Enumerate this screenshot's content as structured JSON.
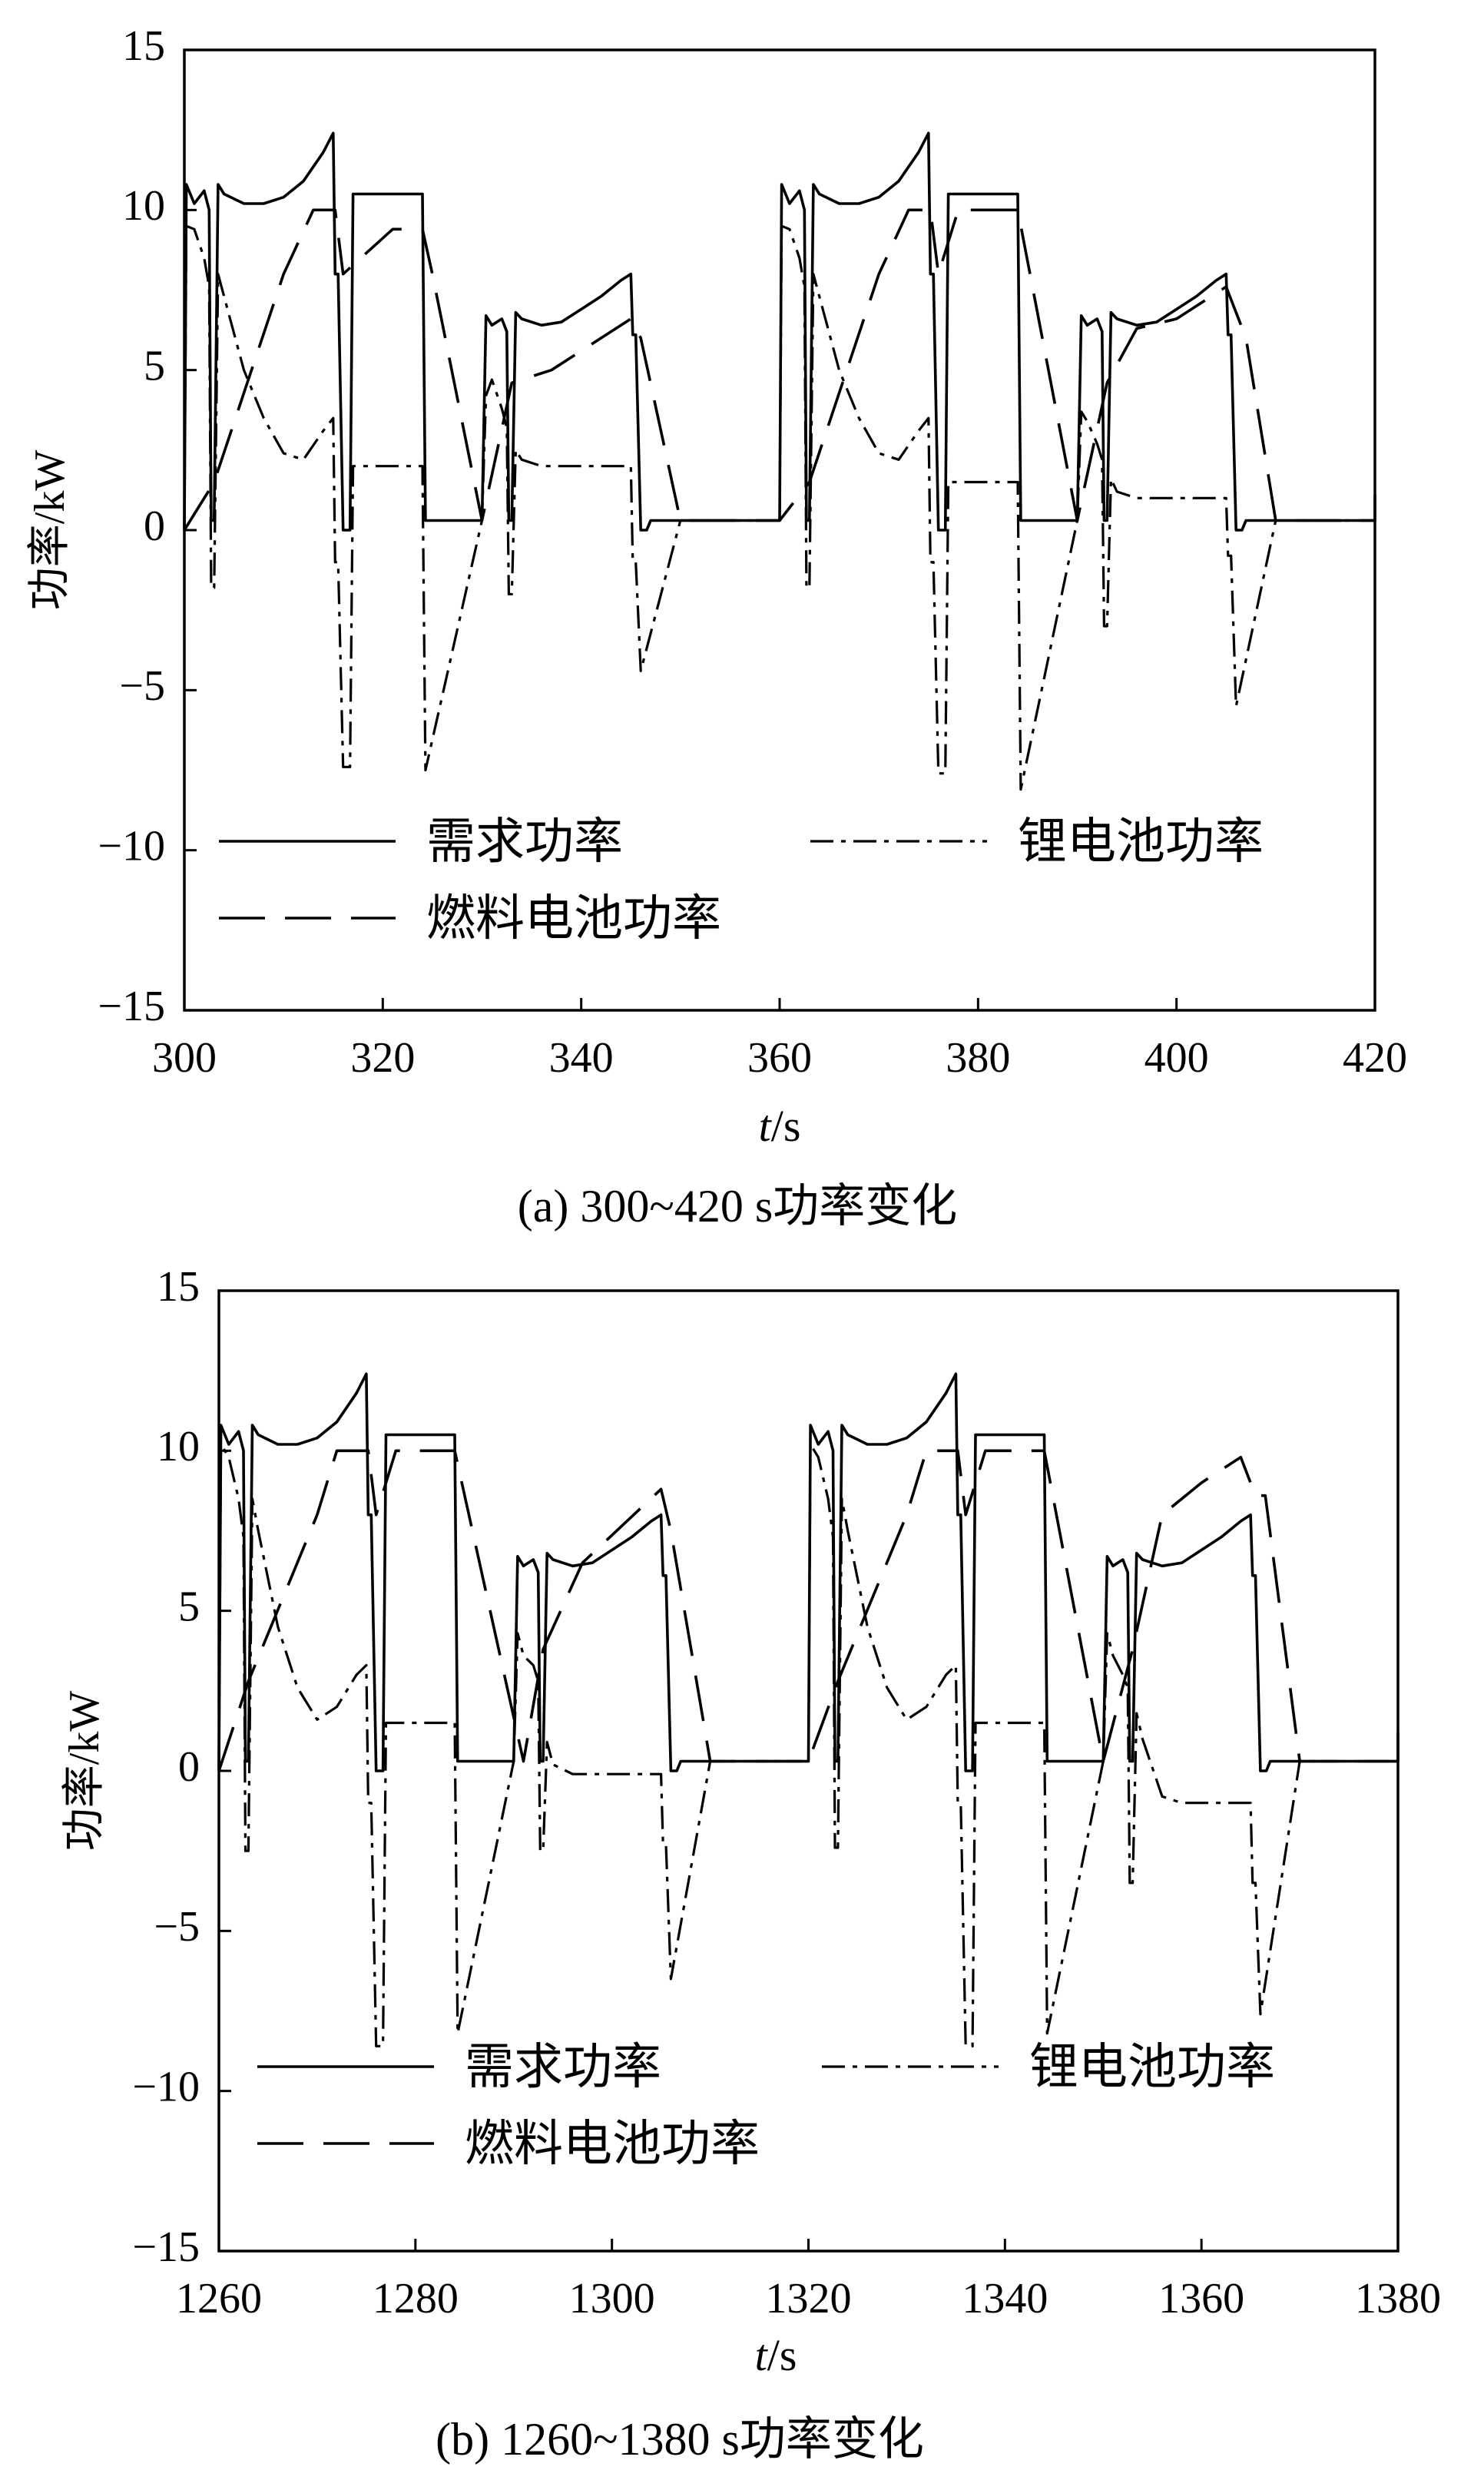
{
  "chart_data": [
    {
      "type": "line",
      "caption": "(a) 300~420 s功率变化",
      "xlabel_italic": "t",
      "xlabel_unit": "/s",
      "ylabel": "功率/kW",
      "xlim": [
        300,
        420
      ],
      "ylim": [
        -15,
        15
      ],
      "xticks": [
        300,
        320,
        340,
        360,
        380,
        400,
        420
      ],
      "yticks": [
        15,
        10,
        5,
        0,
        -5,
        -10,
        -15
      ],
      "legend_position": "bottom",
      "series": [
        {
          "name": "需求功率",
          "style": "solid",
          "x": [
            300,
            300.2,
            301,
            302,
            302.5,
            302.7,
            303,
            303.4,
            304,
            306,
            308,
            310,
            312,
            314,
            315,
            315.2,
            315.5,
            316,
            316.7,
            317,
            318,
            324,
            324.3,
            330,
            330.4,
            331,
            332,
            332.5,
            332.7,
            333,
            333.4,
            334,
            336,
            338,
            340,
            342,
            344,
            345,
            345.2,
            345.5,
            346,
            346.6,
            347,
            350,
            355,
            360,
            360.2,
            361,
            362,
            362.5,
            362.7,
            363,
            363.4,
            364,
            366,
            368,
            370,
            372,
            374,
            375,
            375.2,
            375.5,
            376,
            376.7,
            377,
            378,
            384,
            384.3,
            390,
            390.4,
            391,
            392,
            392.5,
            392.7,
            393,
            393.4,
            394,
            396,
            398,
            400,
            402,
            404,
            405,
            405.2,
            405.5,
            406,
            406.6,
            407,
            410,
            415,
            420,
            420,
            420
          ],
          "y": [
            0,
            10.8,
            10.2,
            10.6,
            10.0,
            0.3,
            0.3,
            10.8,
            10.5,
            10.2,
            10.2,
            10.4,
            10.9,
            11.8,
            12.4,
            8.0,
            8.0,
            0.0,
            0.0,
            10.5,
            10.5,
            10.5,
            0.3,
            0.3,
            6.7,
            6.4,
            6.6,
            6.2,
            0.3,
            0.3,
            6.8,
            6.6,
            6.4,
            6.5,
            6.9,
            7.3,
            7.8,
            8.0,
            6.1,
            6.1,
            0.0,
            0.0,
            0.3,
            0.3,
            0.3,
            0.3,
            10.8,
            10.2,
            10.6,
            10.0,
            0.3,
            0.3,
            10.8,
            10.5,
            10.2,
            10.2,
            10.4,
            10.9,
            11.8,
            12.4,
            8.0,
            8.0,
            0.0,
            0.0,
            10.5,
            10.5,
            10.5,
            0.3,
            0.3,
            6.7,
            6.4,
            6.6,
            6.2,
            0.3,
            0.3,
            6.8,
            6.6,
            6.4,
            6.5,
            6.9,
            7.3,
            7.8,
            8.0,
            6.1,
            6.1,
            0.0,
            0.0,
            0.3,
            0.3,
            0.3,
            0.3,
            0.3,
            1.1
          ]
        },
        {
          "name": "锂电池功率",
          "style": "dashdotdot",
          "x": [
            300,
            300.2,
            301,
            302,
            302.5,
            302.7,
            303,
            303.4,
            304,
            306,
            308,
            310,
            312,
            314,
            315,
            315.2,
            315.5,
            316,
            316.7,
            317,
            324,
            324.3,
            330,
            330.4,
            331,
            332,
            332.5,
            332.7,
            333,
            333.4,
            334,
            336,
            345,
            345.2,
            345.5,
            346,
            350,
            360,
            360.2,
            361,
            362,
            362.5,
            362.7,
            363,
            363.4,
            364,
            366,
            368,
            370,
            372,
            374,
            375,
            375.2,
            375.5,
            376,
            376.7,
            377,
            384,
            384.3,
            390,
            390.4,
            391,
            392,
            392.5,
            392.7,
            393,
            393.4,
            394,
            396,
            405,
            405.2,
            405.5,
            406,
            410,
            420
          ],
          "y": [
            0,
            9.5,
            9.4,
            8.5,
            7.6,
            -1.8,
            -1.8,
            8.0,
            7.3,
            5.0,
            3.5,
            2.4,
            2.2,
            3.1,
            3.5,
            -1.0,
            -1.0,
            -7.4,
            -7.4,
            2.0,
            2.0,
            -7.5,
            0.3,
            4.2,
            4.7,
            3.8,
            3.2,
            -2.0,
            -2.0,
            2.5,
            2.2,
            2.0,
            2.0,
            -1.0,
            -1.0,
            -4.4,
            0.3,
            0.3,
            9.5,
            9.4,
            8.5,
            7.6,
            -1.8,
            -1.8,
            8.0,
            7.3,
            5.0,
            3.5,
            2.4,
            2.2,
            3.1,
            3.5,
            -1.0,
            -1.0,
            -7.6,
            -7.6,
            1.5,
            1.5,
            -8.1,
            0.3,
            3.7,
            3.4,
            2.7,
            2.2,
            -3.0,
            -3.0,
            1.6,
            1.2,
            1.0,
            1.0,
            -0.8,
            -0.8,
            -5.5,
            0.3,
            0.3
          ]
        },
        {
          "name": "燃料电池功率",
          "style": "dashed",
          "x": [
            300,
            303,
            310,
            313,
            315.2,
            316,
            321,
            324,
            325,
            330,
            333,
            337,
            345,
            346,
            350,
            360,
            363,
            370,
            373,
            375.2,
            376,
            378,
            384,
            390,
            393,
            396,
            400,
            405,
            407,
            410,
            420
          ],
          "y": [
            0,
            1.5,
            8.0,
            10.0,
            10.0,
            8.0,
            9.4,
            9.4,
            8.0,
            0.3,
            4.6,
            5.0,
            6.6,
            6.0,
            0.3,
            0.3,
            1.5,
            8.0,
            10.0,
            10.0,
            8.0,
            10.0,
            10.0,
            0.3,
            4.6,
            6.3,
            6.6,
            7.6,
            6.0,
            0.3,
            0.3
          ]
        }
      ]
    },
    {
      "type": "line",
      "caption": "(b) 1260~1380 s功率变化",
      "xlabel_italic": "t",
      "xlabel_unit": "/s",
      "ylabel": "功率/kW",
      "xlim": [
        1260,
        1380
      ],
      "ylim": [
        -15,
        15
      ],
      "xticks": [
        1260,
        1280,
        1300,
        1320,
        1340,
        1360,
        1380
      ],
      "yticks": [
        15,
        10,
        5,
        0,
        -5,
        -10,
        -15
      ],
      "legend_position": "bottom",
      "series": [
        {
          "name": "需求功率",
          "style": "solid",
          "x": [
            1260,
            1260.2,
            1261,
            1262,
            1262.5,
            1262.7,
            1263,
            1263.4,
            1264,
            1266,
            1268,
            1270,
            1272,
            1274,
            1275,
            1275.2,
            1275.5,
            1276,
            1276.7,
            1277,
            1278,
            1284,
            1284.3,
            1290,
            1290.4,
            1291,
            1292,
            1292.5,
            1292.7,
            1293,
            1293.4,
            1294,
            1296,
            1298,
            1300,
            1302,
            1304,
            1305,
            1305.2,
            1305.5,
            1306,
            1306.6,
            1307,
            1310,
            1315,
            1320,
            1320.2,
            1321,
            1322,
            1322.5,
            1322.7,
            1323,
            1323.4,
            1324,
            1326,
            1328,
            1330,
            1332,
            1334,
            1335,
            1335.2,
            1335.5,
            1336,
            1336.7,
            1337,
            1338,
            1344,
            1344.3,
            1350,
            1350.4,
            1351,
            1352,
            1352.5,
            1352.7,
            1353,
            1353.4,
            1354,
            1356,
            1358,
            1360,
            1362,
            1364,
            1365,
            1365.2,
            1365.5,
            1366,
            1366.6,
            1367,
            1370,
            1375,
            1380,
            1380,
            1380
          ],
          "y": [
            0,
            10.8,
            10.2,
            10.6,
            10.0,
            0.3,
            0.3,
            10.8,
            10.5,
            10.2,
            10.2,
            10.4,
            10.9,
            11.8,
            12.4,
            8.0,
            8.0,
            0.0,
            0.0,
            10.5,
            10.5,
            10.5,
            0.3,
            0.3,
            6.7,
            6.4,
            6.6,
            6.2,
            0.3,
            0.3,
            6.8,
            6.6,
            6.4,
            6.5,
            6.9,
            7.3,
            7.8,
            8.0,
            6.1,
            6.1,
            0.0,
            0.0,
            0.3,
            0.3,
            0.3,
            0.3,
            10.8,
            10.2,
            10.6,
            10.0,
            0.3,
            0.3,
            10.8,
            10.5,
            10.2,
            10.2,
            10.4,
            10.9,
            11.8,
            12.4,
            8.0,
            8.0,
            0.0,
            0.0,
            10.5,
            10.5,
            10.5,
            0.3,
            0.3,
            6.7,
            6.4,
            6.6,
            6.2,
            0.3,
            0.3,
            6.8,
            6.6,
            6.4,
            6.5,
            6.9,
            7.3,
            7.8,
            8.0,
            6.1,
            6.1,
            0.0,
            0.0,
            0.3,
            0.3,
            0.3,
            0.3,
            0.3,
            1.2
          ]
        },
        {
          "name": "锂电池功率",
          "style": "dashdotdot",
          "x": [
            1260,
            1260.2,
            1261,
            1262,
            1262.5,
            1262.7,
            1263,
            1263.4,
            1264,
            1266,
            1268,
            1270,
            1272,
            1274,
            1275,
            1275.2,
            1275.5,
            1276,
            1276.7,
            1277,
            1284,
            1284.3,
            1290,
            1290.4,
            1291,
            1292,
            1292.5,
            1292.7,
            1293,
            1293.4,
            1294,
            1296,
            1305,
            1305.2,
            1305.5,
            1306,
            1310,
            1320,
            1320.2,
            1321,
            1322,
            1322.5,
            1322.7,
            1323,
            1323.4,
            1324,
            1326,
            1328,
            1330,
            1332,
            1334,
            1335,
            1335.2,
            1335.5,
            1336,
            1336.7,
            1337,
            1344,
            1344.3,
            1350,
            1350.4,
            1351,
            1352,
            1352.5,
            1352.7,
            1353,
            1353.4,
            1354,
            1356,
            1358,
            1365,
            1365.2,
            1365.5,
            1366,
            1370,
            1380
          ],
          "y": [
            0,
            10.2,
            9.8,
            8.5,
            7.3,
            -2.5,
            -2.5,
            8.5,
            7.5,
            4.5,
            2.6,
            1.6,
            2.0,
            3.0,
            3.3,
            -1.0,
            -1.0,
            -8.6,
            -8.6,
            1.5,
            1.5,
            -8.2,
            0.3,
            4.3,
            3.6,
            3.3,
            2.8,
            -2.5,
            -2.5,
            0.9,
            0.2,
            -0.1,
            -0.1,
            -2.3,
            -2.3,
            -6.5,
            0.3,
            0.3,
            10.2,
            9.8,
            8.5,
            7.3,
            -2.4,
            -2.4,
            8.5,
            7.5,
            4.5,
            2.6,
            1.6,
            2.0,
            3.0,
            3.3,
            -1.0,
            -1.0,
            -8.6,
            -8.6,
            1.5,
            1.5,
            -8.2,
            0.3,
            4.3,
            3.6,
            3.0,
            2.6,
            -3.5,
            -3.5,
            1.8,
            1.0,
            -0.8,
            -1.0,
            -1.0,
            -3.5,
            -3.5,
            -7.6,
            0.3,
            0.3
          ]
        },
        {
          "name": "燃料电池功率",
          "style": "dashed",
          "x": [
            1260,
            1263,
            1270,
            1272,
            1275.2,
            1276,
            1278,
            1284,
            1291,
            1293,
            1297,
            1305,
            1306,
            1310,
            1320,
            1323,
            1330,
            1332,
            1335.2,
            1336,
            1338,
            1344,
            1350,
            1353,
            1356,
            1360,
            1364,
            1365.5,
            1366.5,
            1370,
            1380
          ],
          "y": [
            0,
            2.8,
            8.0,
            10.0,
            10.0,
            8.0,
            10.0,
            10.0,
            0.3,
            3.8,
            6.5,
            8.8,
            7.5,
            0.3,
            0.3,
            2.8,
            8.0,
            10.0,
            10.0,
            8.0,
            10.0,
            10.0,
            0.3,
            3.8,
            8.0,
            9.0,
            9.8,
            8.6,
            8.6,
            0.3,
            0.3
          ]
        }
      ]
    }
  ]
}
